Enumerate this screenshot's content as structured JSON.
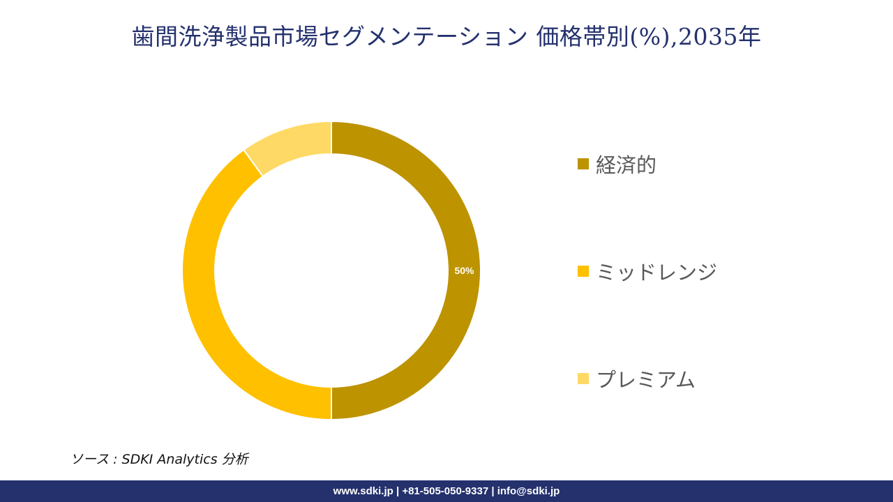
{
  "title": "歯間洗浄製品市場セグメンテーション 価格帯別(%),2035年",
  "chart_data": {
    "type": "pie",
    "donut": true,
    "title": "歯間洗浄製品市場セグメンテーション 価格帯別(%),2035年",
    "categories": [
      "経済的",
      "ミッドレンジ",
      "プレミアム"
    ],
    "values": [
      50,
      40,
      10
    ],
    "data_labels": [
      "50%",
      "",
      ""
    ],
    "colors": [
      "#bd9300",
      "#ffc000",
      "#ffd966"
    ],
    "legend_position": "right"
  },
  "source": "ソース : SDKI Analytics  分析",
  "footer": {
    "contact": "www.sdki.jp | +81-505-050-9337 | info@sdki.jp"
  }
}
